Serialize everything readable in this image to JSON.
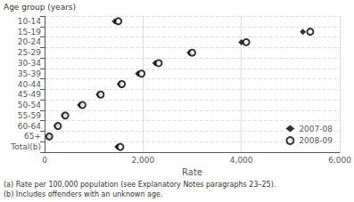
{
  "chart_data": {
    "type": "scatter",
    "orientation": "horizontal",
    "categories": [
      "10-14",
      "15-19",
      "20-24",
      "25-29",
      "30-34",
      "35-39",
      "40-44",
      "45-49",
      "50-54",
      "55-59",
      "60-64",
      "65+",
      "Total(b)"
    ],
    "series": [
      {
        "name": "2007-08",
        "color": "#000000",
        "marker": "diamond",
        "values": [
          1430,
          5250,
          4000,
          2950,
          2250,
          1900,
          1530,
          1100,
          720,
          390,
          240,
          80,
          1480
        ]
      },
      {
        "name": "2008-09",
        "color": "#000000",
        "marker": "open_circle",
        "values": [
          1500,
          5400,
          4100,
          3000,
          2320,
          1970,
          1570,
          1140,
          770,
          420,
          270,
          95,
          1540
        ]
      }
    ],
    "xlabel": "Rate",
    "ylabel": "Age group (years)",
    "xlim": [
      0,
      6000
    ],
    "xticks": [
      0,
      2000,
      4000,
      6000
    ],
    "grid": true,
    "legend": "lower right",
    "annotations": [
      "(a) Rate per 100,000 population (see Explanatory Notes paragraphs 23–25).",
      "(b) Includes offenders with an unknown age."
    ]
  }
}
